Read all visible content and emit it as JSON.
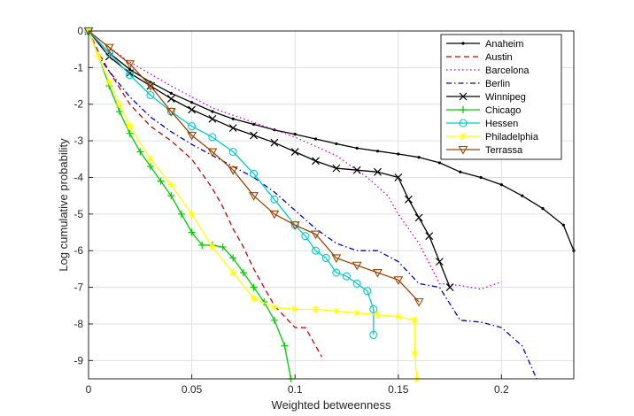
{
  "chart_data": {
    "type": "line",
    "title": "",
    "xlabel": "Weighted betweenness",
    "ylabel": "Log cumulative probability",
    "xlim": [
      0,
      0.235
    ],
    "ylim": [
      -9.5,
      0
    ],
    "xticks": [
      0,
      0.05,
      0.1,
      0.15,
      0.2
    ],
    "xtick_labels": [
      "0",
      "0.05",
      "0.1",
      "0.15",
      "0.2"
    ],
    "yticks": [
      0,
      -1,
      -2,
      -3,
      -4,
      -5,
      -6,
      -7,
      -8,
      -9
    ],
    "ytick_labels": [
      "0",
      "-1",
      "-2",
      "-3",
      "-4",
      "-5",
      "-6",
      "-7",
      "-8",
      "-9"
    ],
    "grid": true,
    "legend_position": "top-right",
    "series": [
      {
        "name": "Anaheim",
        "color": "#000000",
        "dash": "solid",
        "marker": "dot",
        "x": [
          0,
          0.01,
          0.02,
          0.03,
          0.04,
          0.05,
          0.06,
          0.07,
          0.08,
          0.09,
          0.1,
          0.11,
          0.12,
          0.13,
          0.14,
          0.15,
          0.16,
          0.17,
          0.18,
          0.19,
          0.2,
          0.21,
          0.22,
          0.23,
          0.235
        ],
        "y": [
          0,
          -0.6,
          -1.05,
          -1.4,
          -1.7,
          -1.95,
          -2.2,
          -2.4,
          -2.55,
          -2.7,
          -2.82,
          -2.95,
          -3.08,
          -3.2,
          -3.28,
          -3.36,
          -3.45,
          -3.6,
          -3.85,
          -4.0,
          -4.2,
          -4.5,
          -4.85,
          -5.3,
          -6.0
        ]
      },
      {
        "name": "Austin",
        "color": "#cc0000",
        "dash": "dashed",
        "marker": "none",
        "x": [
          0,
          0.005,
          0.01,
          0.02,
          0.03,
          0.04,
          0.05,
          0.055,
          0.06,
          0.065,
          0.07,
          0.075,
          0.08,
          0.085,
          0.09,
          0.095,
          0.1,
          0.105,
          0.11,
          0.113
        ],
        "y": [
          0,
          -0.6,
          -1.1,
          -2.0,
          -2.6,
          -3.0,
          -3.5,
          -3.9,
          -4.3,
          -4.8,
          -5.4,
          -5.9,
          -6.5,
          -7.0,
          -7.5,
          -7.8,
          -8.1,
          -8.1,
          -8.6,
          -8.9
        ]
      },
      {
        "name": "Barcelona",
        "color": "#cc00cc",
        "dash": "dotted",
        "marker": "none",
        "x": [
          0,
          0.01,
          0.02,
          0.04,
          0.06,
          0.08,
          0.1,
          0.12,
          0.135,
          0.145,
          0.15,
          0.16,
          0.17,
          0.18,
          0.19,
          0.2
        ],
        "y": [
          0,
          -0.45,
          -0.85,
          -1.5,
          -2.1,
          -2.5,
          -2.9,
          -3.4,
          -4.0,
          -4.5,
          -5.0,
          -5.8,
          -6.9,
          -6.95,
          -7.05,
          -6.85
        ]
      },
      {
        "name": "Berlin",
        "color": "#0000cc",
        "dash": "dashdot",
        "marker": "none",
        "x": [
          0,
          0.005,
          0.01,
          0.02,
          0.03,
          0.04,
          0.05,
          0.06,
          0.07,
          0.08,
          0.09,
          0.1,
          0.11,
          0.12,
          0.13,
          0.14,
          0.15,
          0.16,
          0.17,
          0.18,
          0.19,
          0.2,
          0.21,
          0.217
        ],
        "y": [
          0,
          -0.7,
          -1.1,
          -1.8,
          -2.35,
          -2.75,
          -3.1,
          -3.4,
          -3.7,
          -4.0,
          -4.4,
          -4.9,
          -5.4,
          -5.8,
          -6.0,
          -6.0,
          -6.3,
          -6.9,
          -7.0,
          -7.9,
          -7.95,
          -8.1,
          -8.6,
          -9.5
        ]
      },
      {
        "name": "Winnipeg",
        "color": "#000000",
        "dash": "solid",
        "marker": "x",
        "x": [
          0,
          0.01,
          0.02,
          0.03,
          0.04,
          0.05,
          0.06,
          0.07,
          0.08,
          0.09,
          0.1,
          0.11,
          0.12,
          0.13,
          0.14,
          0.15,
          0.155,
          0.16,
          0.165,
          0.17,
          0.175
        ],
        "y": [
          0,
          -0.7,
          -1.15,
          -1.5,
          -1.85,
          -2.15,
          -2.4,
          -2.65,
          -2.85,
          -3.05,
          -3.3,
          -3.55,
          -3.75,
          -3.8,
          -3.85,
          -4.0,
          -4.6,
          -5.1,
          -5.6,
          -6.3,
          -7.0
        ]
      },
      {
        "name": "Chicago",
        "color": "#00cc00",
        "dash": "solid",
        "marker": "plus",
        "x": [
          0,
          0.005,
          0.01,
          0.015,
          0.02,
          0.025,
          0.03,
          0.035,
          0.04,
          0.045,
          0.05,
          0.055,
          0.06,
          0.065,
          0.07,
          0.075,
          0.08,
          0.085,
          0.09,
          0.095,
          0.098
        ],
        "y": [
          0,
          -0.7,
          -1.5,
          -2.2,
          -2.8,
          -3.3,
          -3.7,
          -4.1,
          -4.5,
          -5.0,
          -5.5,
          -5.85,
          -5.85,
          -5.9,
          -6.2,
          -6.6,
          -7.0,
          -7.4,
          -7.9,
          -8.6,
          -9.5
        ]
      },
      {
        "name": "Hessen",
        "color": "#00cccc",
        "dash": "solid",
        "marker": "circle",
        "x": [
          0,
          0.01,
          0.02,
          0.03,
          0.04,
          0.05,
          0.06,
          0.07,
          0.08,
          0.09,
          0.1,
          0.105,
          0.11,
          0.115,
          0.12,
          0.125,
          0.13,
          0.135,
          0.138,
          0.138
        ],
        "y": [
          0,
          -0.6,
          -1.2,
          -1.75,
          -2.2,
          -2.6,
          -2.9,
          -3.3,
          -3.9,
          -4.6,
          -5.3,
          -5.6,
          -6.0,
          -6.2,
          -6.6,
          -6.7,
          -6.9,
          -7.1,
          -7.6,
          -8.3
        ]
      },
      {
        "name": "Philadelphia",
        "color": "#ffff00",
        "dash": "solid",
        "marker": "star",
        "x": [
          0,
          0.005,
          0.01,
          0.015,
          0.02,
          0.03,
          0.04,
          0.05,
          0.06,
          0.07,
          0.08,
          0.09,
          0.1,
          0.11,
          0.12,
          0.13,
          0.14,
          0.15,
          0.158,
          0.158,
          0.159
        ],
        "y": [
          0,
          -0.7,
          -1.4,
          -2.0,
          -2.6,
          -3.5,
          -4.2,
          -5.0,
          -5.9,
          -6.6,
          -7.3,
          -7.55,
          -7.6,
          -7.6,
          -7.65,
          -7.7,
          -7.75,
          -7.8,
          -7.9,
          -8.8,
          -9.5
        ]
      },
      {
        "name": "Terrassa",
        "color": "#994400",
        "dash": "solid",
        "marker": "triangle-down",
        "x": [
          0,
          0.01,
          0.02,
          0.03,
          0.04,
          0.05,
          0.06,
          0.07,
          0.08,
          0.09,
          0.1,
          0.11,
          0.12,
          0.13,
          0.14,
          0.15,
          0.16
        ],
        "y": [
          0,
          -0.45,
          -0.9,
          -1.5,
          -2.2,
          -2.85,
          -3.3,
          -3.8,
          -4.5,
          -5.0,
          -5.3,
          -5.55,
          -6.2,
          -6.4,
          -6.6,
          -6.8,
          -7.4
        ]
      }
    ]
  }
}
